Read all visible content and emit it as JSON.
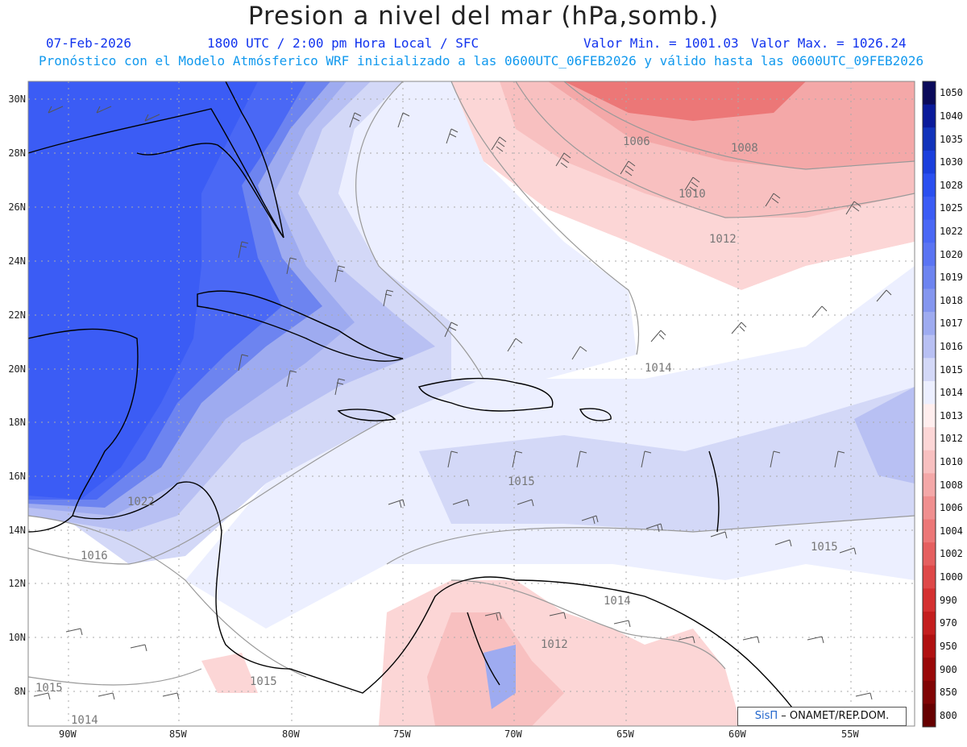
{
  "header": {
    "title": "Presion a nivel del mar (hPa,somb.)",
    "date": "07-Feb-2026",
    "time": "1800 UTC / 2:00 pm Hora Local / SFC",
    "min": "Valor Min. = 1001.03",
    "max": "Valor Max. = 1026.24",
    "forecast": "Pronóstico con el Modelo Atmósferico WRF inicializado a las 0600UTC_06FEB2026 y válido hasta las  0600UTC_09FEB2026"
  },
  "axes": {
    "lat_labels": [
      "30N",
      "28N",
      "26N",
      "24N",
      "22N",
      "20N",
      "18N",
      "16N",
      "14N",
      "12N",
      "10N",
      "8N"
    ],
    "lon_labels": [
      "90W",
      "85W",
      "80W",
      "75W",
      "70W",
      "65W",
      "60W",
      "55W"
    ]
  },
  "colorbar": {
    "labels": [
      "1050",
      "1040",
      "1035",
      "1030",
      "1028",
      "1025",
      "1022",
      "1020",
      "1019",
      "1018",
      "1017",
      "1016",
      "1015",
      "1014",
      "1013",
      "1012",
      "1010",
      "1008",
      "1006",
      "1004",
      "1002",
      "1000",
      "990",
      "970",
      "950",
      "900",
      "850",
      "800"
    ],
    "colors": [
      "#0a0a5a",
      "#0a1a9a",
      "#1133bb",
      "#1a3fdd",
      "#2a4ff0",
      "#3b5cf5",
      "#4a68f5",
      "#5a74f3",
      "#6d84f0",
      "#8496ef",
      "#9eabf0",
      "#b8c0f3",
      "#d3d8f7",
      "#ecefff",
      "#ffeeee",
      "#fcd6d6",
      "#f8c0c0",
      "#f4a8a8",
      "#f08f8f",
      "#ec7777",
      "#e55f5f",
      "#de4848",
      "#d43030",
      "#c41e1e",
      "#b01010",
      "#990808",
      "#800404",
      "#660000"
    ]
  },
  "map_labels": [
    {
      "text": "1006"
    },
    {
      "text": "1008"
    },
    {
      "text": "1010"
    },
    {
      "text": "1012"
    },
    {
      "text": "1014"
    },
    {
      "text": "1015"
    },
    {
      "text": "1022"
    },
    {
      "text": "1016"
    },
    {
      "text": "1015"
    },
    {
      "text": "1014"
    },
    {
      "text": "1012"
    },
    {
      "text": "1015"
    },
    {
      "text": "1015"
    },
    {
      "text": "1014"
    }
  ],
  "credit": {
    "brand": "SisΠ",
    "text": "– ONAMET/REP.DOM."
  }
}
